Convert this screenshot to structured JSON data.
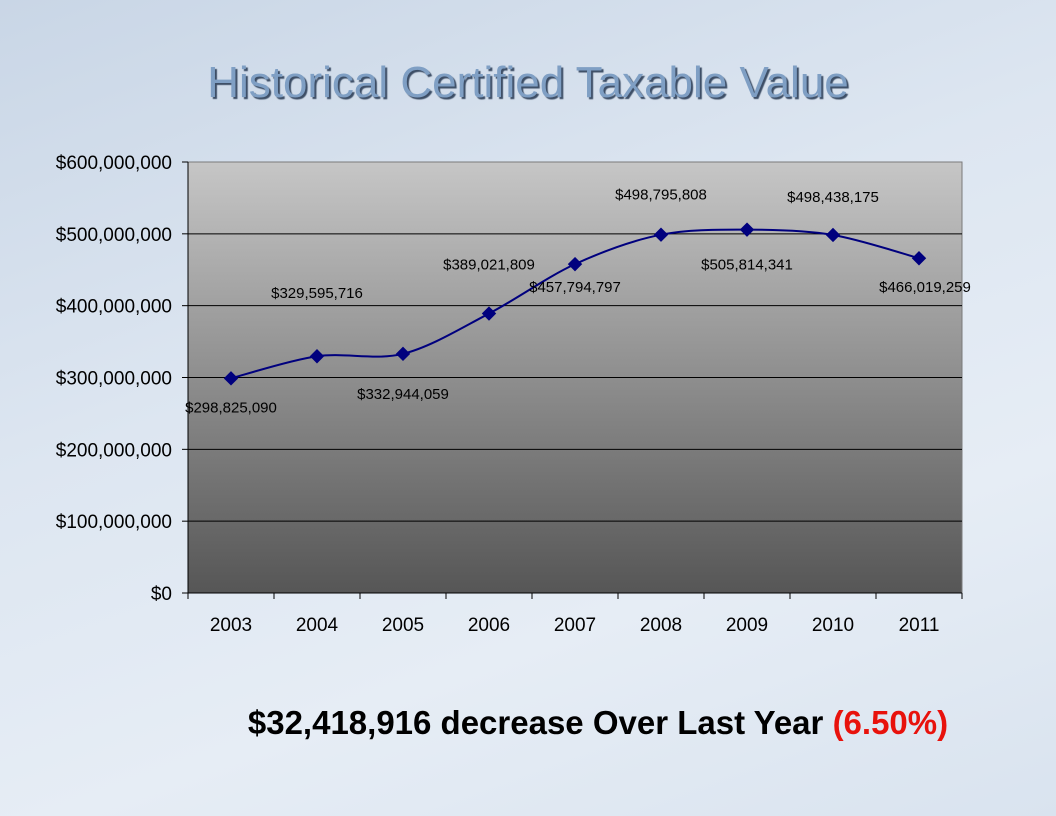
{
  "slide": {
    "title": "Historical Certified Taxable Value",
    "summary": {
      "text": "$32,418,916 decrease Over Last Year",
      "percent": "(6.50%)",
      "percent_color": "#e8120c"
    }
  },
  "chart_data": {
    "type": "line",
    "title": "",
    "xlabel": "",
    "ylabel": "",
    "categories": [
      "2003",
      "2004",
      "2005",
      "2006",
      "2007",
      "2008",
      "2009",
      "2010",
      "2011"
    ],
    "series": [
      {
        "values": [
          298825090,
          329595716,
          332944059,
          389021809,
          457794797,
          498795808,
          505814341,
          498438175,
          466019259
        ],
        "data_labels": [
          "$298,825,090",
          "$329,595,716",
          "$332,944,059",
          "$389,021,809",
          "$457,794,797",
          "$498,795,808",
          "$505,814,341",
          "$498,438,175",
          "$466,019,259"
        ],
        "color": "#00007e",
        "marker": "diamond"
      }
    ],
    "ylim": [
      0,
      600000000
    ],
    "y_ticks": [
      0,
      100000000,
      200000000,
      300000000,
      400000000,
      500000000,
      600000000
    ],
    "y_tick_labels": [
      "$0",
      "$100,000,000",
      "$200,000,000",
      "$300,000,000",
      "$400,000,000",
      "$500,000,000",
      "$600,000,000"
    ],
    "grid": true,
    "legend": "none",
    "plot_background": "gradient light gray to dark gray"
  }
}
